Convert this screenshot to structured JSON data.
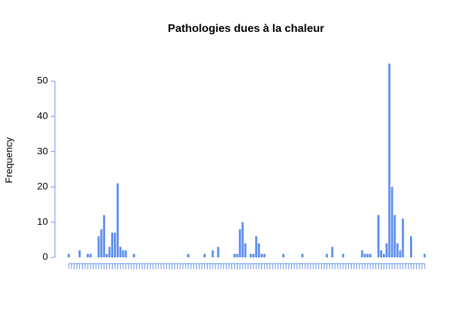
{
  "chart_data": {
    "type": "bar",
    "title": "Pathologies dues à la chaleur",
    "ylabel": "Frequency",
    "categories": [
      null,
      null,
      null,
      null,
      null,
      null,
      null,
      null,
      null,
      null,
      null,
      null,
      null,
      null,
      null,
      null,
      null,
      null,
      null,
      null,
      null,
      null,
      null,
      null,
      null,
      null,
      null,
      null,
      null,
      null,
      null,
      null,
      null,
      null,
      null,
      null,
      null,
      null,
      null,
      null,
      null,
      null,
      null,
      null,
      null,
      null,
      null,
      null,
      null,
      null,
      null,
      null,
      null,
      null,
      null,
      null,
      null,
      null,
      null,
      null,
      null,
      null,
      null,
      null,
      null,
      null,
      null,
      null,
      null,
      null,
      null,
      null,
      null,
      null,
      null,
      null,
      null,
      null,
      null,
      null,
      null,
      null,
      null,
      null,
      null,
      null,
      null,
      null,
      null,
      null,
      null,
      null,
      null,
      null,
      null,
      null,
      null,
      null,
      null,
      null,
      null,
      null,
      null,
      null,
      null,
      null,
      null,
      null,
      null,
      null,
      null,
      null,
      null,
      null,
      null,
      null,
      null,
      null,
      null,
      null,
      null,
      null,
      null,
      null,
      null,
      null,
      null,
      null,
      null,
      null,
      null,
      null
    ],
    "values": [
      1,
      0,
      0,
      0,
      2,
      0,
      0,
      1,
      1,
      0,
      0,
      6,
      8,
      12,
      1,
      3,
      7,
      7,
      21,
      3,
      2,
      2,
      0,
      0,
      1,
      0,
      0,
      0,
      0,
      0,
      0,
      0,
      0,
      0,
      0,
      0,
      0,
      0,
      0,
      0,
      0,
      0,
      0,
      0,
      1,
      0,
      0,
      0,
      0,
      0,
      1,
      0,
      0,
      2,
      0,
      3,
      0,
      0,
      0,
      0,
      0,
      1,
      1,
      8,
      10,
      4,
      0,
      1,
      1,
      6,
      4,
      1,
      1,
      0,
      0,
      0,
      0,
      0,
      0,
      1,
      0,
      0,
      0,
      0,
      0,
      0,
      1,
      0,
      0,
      0,
      0,
      0,
      0,
      0,
      0,
      1,
      0,
      3,
      0,
      0,
      0,
      1,
      0,
      0,
      0,
      0,
      0,
      0,
      2,
      1,
      1,
      1,
      0,
      0,
      12,
      2,
      1,
      4,
      55,
      20,
      12,
      4,
      2,
      11,
      0,
      0,
      6,
      0,
      0,
      0,
      0,
      1
    ],
    "color": "#5b8def",
    "ylim": [
      0,
      55
    ],
    "yticks": [
      0,
      10,
      20,
      30,
      40,
      50
    ]
  }
}
